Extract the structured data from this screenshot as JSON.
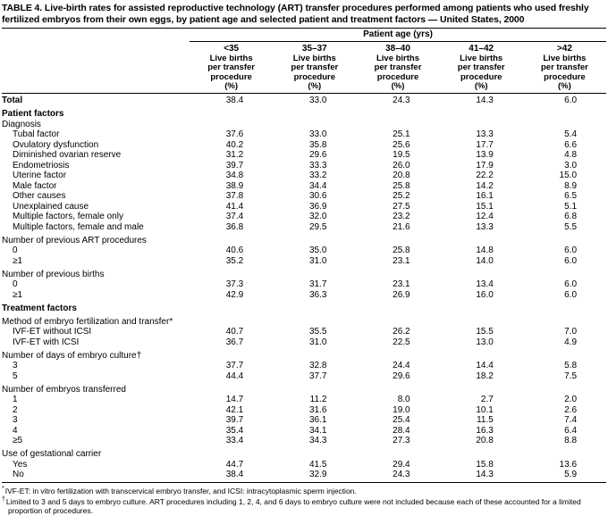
{
  "title": "TABLE 4. Live-birth rates for assisted reproductive technology (ART) transfer procedures performed among patients who used freshly fertilized embryos from their own eggs, by patient age and selected patient and treatment factors — United States, 2000",
  "table": {
    "col_group_header": "Patient age (yrs)",
    "columns": [
      {
        "age": "<35",
        "sub": "Live births per transfer procedure (%)"
      },
      {
        "age": "35–37",
        "sub": "Live births per transfer procedure (%)"
      },
      {
        "age": "38–40",
        "sub": "Live births per transfer procedure (%)"
      },
      {
        "age": "41–42",
        "sub": "Live births per transfer procedure (%)"
      },
      {
        "age": ">42",
        "sub": "Live births per transfer procedure (%)"
      }
    ],
    "rows": [
      {
        "label": "Total",
        "bold": true,
        "indent": 0,
        "gap": false,
        "values": [
          "38.4",
          "33.0",
          "24.3",
          "14.3",
          "6.0"
        ]
      },
      {
        "label": "Patient factors",
        "bold": true,
        "indent": 0,
        "gap": true,
        "values": []
      },
      {
        "label": "Diagnosis",
        "bold": false,
        "indent": 0,
        "gap": false,
        "values": []
      },
      {
        "label": "Tubal factor",
        "bold": false,
        "indent": 1,
        "gap": false,
        "values": [
          "37.6",
          "33.0",
          "25.1",
          "13.3",
          "5.4"
        ]
      },
      {
        "label": "Ovulatory dysfunction",
        "bold": false,
        "indent": 1,
        "gap": false,
        "values": [
          "40.2",
          "35.8",
          "25.6",
          "17.7",
          "6.6"
        ]
      },
      {
        "label": "Diminished ovarian reserve",
        "bold": false,
        "indent": 1,
        "gap": false,
        "values": [
          "31.2",
          "29.6",
          "19.5",
          "13.9",
          "4.8"
        ]
      },
      {
        "label": "Endometriosis",
        "bold": false,
        "indent": 1,
        "gap": false,
        "values": [
          "39.7",
          "33.3",
          "26.0",
          "17.9",
          "3.0"
        ]
      },
      {
        "label": "Uterine factor",
        "bold": false,
        "indent": 1,
        "gap": false,
        "values": [
          "34.8",
          "33.2",
          "20.8",
          "22.2",
          "15.0"
        ]
      },
      {
        "label": "Male factor",
        "bold": false,
        "indent": 1,
        "gap": false,
        "values": [
          "38.9",
          "34.4",
          "25.8",
          "14.2",
          "8.9"
        ]
      },
      {
        "label": "Other causes",
        "bold": false,
        "indent": 1,
        "gap": false,
        "values": [
          "37.8",
          "30.6",
          "25.2",
          "16.1",
          "6.5"
        ]
      },
      {
        "label": "Unexplained cause",
        "bold": false,
        "indent": 1,
        "gap": false,
        "values": [
          "41.4",
          "36.9",
          "27.5",
          "15.1",
          "5.1"
        ]
      },
      {
        "label": "Multiple factors, female only",
        "bold": false,
        "indent": 1,
        "gap": false,
        "values": [
          "37.4",
          "32.0",
          "23.2",
          "12.4",
          "6.8"
        ]
      },
      {
        "label": "Multiple factors, female and male",
        "bold": false,
        "indent": 1,
        "gap": false,
        "values": [
          "36.8",
          "29.5",
          "21.6",
          "13.3",
          "5.5"
        ]
      },
      {
        "label": "Number of previous ART procedures",
        "bold": false,
        "indent": 0,
        "gap": true,
        "values": []
      },
      {
        "label": "0",
        "bold": false,
        "indent": 1,
        "gap": false,
        "values": [
          "40.6",
          "35.0",
          "25.8",
          "14.8",
          "6.0"
        ]
      },
      {
        "label": "≥1",
        "bold": false,
        "indent": 1,
        "gap": false,
        "values": [
          "35.2",
          "31.0",
          "23.1",
          "14.0",
          "6.0"
        ]
      },
      {
        "label": "Number of previous births",
        "bold": false,
        "indent": 0,
        "gap": true,
        "values": []
      },
      {
        "label": "0",
        "bold": false,
        "indent": 1,
        "gap": false,
        "values": [
          "37.3",
          "31.7",
          "23.1",
          "13.4",
          "6.0"
        ]
      },
      {
        "label": "≥1",
        "bold": false,
        "indent": 1,
        "gap": false,
        "values": [
          "42.9",
          "36.3",
          "26.9",
          "16.0",
          "6.0"
        ]
      },
      {
        "label": "Treatment factors",
        "bold": true,
        "indent": 0,
        "gap": true,
        "values": []
      },
      {
        "label": "Method of embryo fertilization and transfer*",
        "bold": false,
        "indent": 0,
        "gap": true,
        "values": []
      },
      {
        "label": "IVF-ET without ICSI",
        "bold": false,
        "indent": 1,
        "gap": false,
        "values": [
          "40.7",
          "35.5",
          "26.2",
          "15.5",
          "7.0"
        ]
      },
      {
        "label": "IVF-ET with ICSI",
        "bold": false,
        "indent": 1,
        "gap": false,
        "values": [
          "36.7",
          "31.0",
          "22.5",
          "13.0",
          "4.9"
        ]
      },
      {
        "label": "Number of days of embryo culture†",
        "bold": false,
        "indent": 0,
        "gap": true,
        "values": []
      },
      {
        "label": "3",
        "bold": false,
        "indent": 1,
        "gap": false,
        "values": [
          "37.7",
          "32.8",
          "24.4",
          "14.4",
          "5.8"
        ]
      },
      {
        "label": "5",
        "bold": false,
        "indent": 1,
        "gap": false,
        "values": [
          "44.4",
          "37.7",
          "29.6",
          "18.2",
          "7.5"
        ]
      },
      {
        "label": "Number of embryos transferred",
        "bold": false,
        "indent": 0,
        "gap": true,
        "values": []
      },
      {
        "label": "1",
        "bold": false,
        "indent": 1,
        "gap": false,
        "values": [
          "14.7",
          "11.2",
          "8.0",
          "2.7",
          "2.0"
        ]
      },
      {
        "label": "2",
        "bold": false,
        "indent": 1,
        "gap": false,
        "values": [
          "42.1",
          "31.6",
          "19.0",
          "10.1",
          "2.6"
        ]
      },
      {
        "label": "3",
        "bold": false,
        "indent": 1,
        "gap": false,
        "values": [
          "39.7",
          "36.1",
          "25.4",
          "11.5",
          "7.4"
        ]
      },
      {
        "label": "4",
        "bold": false,
        "indent": 1,
        "gap": false,
        "values": [
          "35.4",
          "34.1",
          "28.4",
          "16.3",
          "6.4"
        ]
      },
      {
        "label": "≥5",
        "bold": false,
        "indent": 1,
        "gap": false,
        "values": [
          "33.4",
          "34.3",
          "27.3",
          "20.8",
          "8.8"
        ]
      },
      {
        "label": "Use of gestational carrier",
        "bold": false,
        "indent": 0,
        "gap": true,
        "values": []
      },
      {
        "label": "Yes",
        "bold": false,
        "indent": 1,
        "gap": false,
        "values": [
          "44.7",
          "41.5",
          "29.4",
          "15.8",
          "13.6"
        ]
      },
      {
        "label": "No",
        "bold": false,
        "indent": 1,
        "gap": false,
        "values": [
          "38.4",
          "32.9",
          "24.3",
          "14.3",
          "5.9"
        ]
      }
    ]
  },
  "footnotes": [
    {
      "marker": "*",
      "text": "IVF-ET: in vitro fertilization with transcervical embryo transfer, and ICSI: intracytoplasmic sperm injection."
    },
    {
      "marker": "†",
      "text": "Limited to 3 and 5 days to embryo culture. ART procedures including 1, 2, 4, and 6 days to embryo culture were not included because each of these accounted for a limited proportion of procedures."
    }
  ]
}
